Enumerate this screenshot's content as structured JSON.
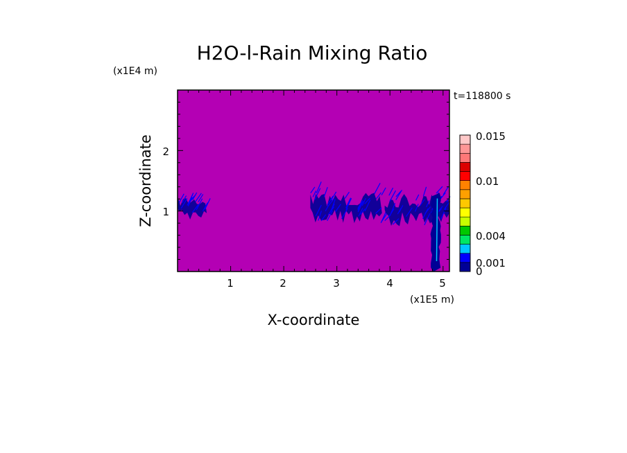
{
  "chart_data": {
    "type": "heatmap",
    "title": "H2O-l-Rain Mixing Ratio",
    "xlabel": "X-coordinate",
    "ylabel": "Z-coordinate",
    "x_unit": "(x1E5 m)",
    "y_unit": "(x1E4 m)",
    "time_label": "t=118800 s",
    "xlim": [
      0,
      5.12
    ],
    "ylim": [
      0,
      3.0
    ],
    "x_ticks": [
      1,
      2,
      3,
      4,
      5
    ],
    "y_ticks": [
      1,
      2
    ],
    "background_color": "#b400b4",
    "colorbar": {
      "levels": [
        0,
        0.001,
        0.002,
        0.003,
        0.004,
        0.005,
        0.006,
        0.007,
        0.008,
        0.009,
        0.01,
        0.011,
        0.012,
        0.013,
        0.014,
        0.015
      ],
      "colors": [
        "#000096",
        "#0000ff",
        "#00c8ff",
        "#00e664",
        "#00c800",
        "#c8ff00",
        "#ffff00",
        "#ffc800",
        "#ffa000",
        "#ff8200",
        "#ff0000",
        "#dc0000",
        "#ff7878",
        "#ff9696",
        "#ffc8c8"
      ],
      "label_values": [
        "0",
        "0.001",
        "0.004",
        "0.01",
        "0.015"
      ]
    },
    "regions": [
      {
        "name": "rain-patch-west",
        "x_range": [
          0.0,
          0.55
        ],
        "z_range": [
          0.85,
          1.25
        ],
        "color": "#0000c8"
      },
      {
        "name": "rain-patch-central",
        "x_range": [
          2.5,
          3.85
        ],
        "z_range": [
          0.8,
          1.3
        ],
        "color": "#0000c8"
      },
      {
        "name": "rain-patch-east",
        "x_range": [
          3.9,
          5.12
        ],
        "z_range": [
          0.75,
          1.3
        ],
        "color": "#0000c8"
      },
      {
        "name": "rain-shaft",
        "x_range": [
          4.78,
          4.95
        ],
        "z_range": [
          0.0,
          1.3
        ],
        "color": "#0000ff"
      }
    ]
  }
}
